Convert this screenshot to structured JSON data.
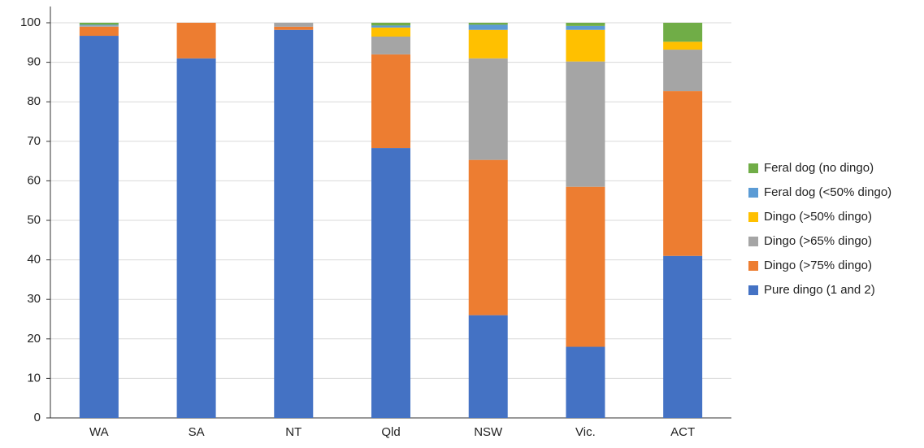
{
  "chart_data": {
    "type": "stacked_bar",
    "categories": [
      "WA",
      "SA",
      "NT",
      "Qld",
      "NSW",
      "Vic.",
      "ACT"
    ],
    "series": [
      {
        "name": "Pure dingo (1 and 2)",
        "color": "#4472c4",
        "values": [
          96.7,
          91,
          98.2,
          68.3,
          26,
          18,
          41
        ]
      },
      {
        "name": "Dingo (>75% dingo)",
        "color": "#ed7d31",
        "values": [
          2.3,
          9,
          0.8,
          23.7,
          39.3,
          40.5,
          41.7
        ]
      },
      {
        "name": "Dingo (>65% dingo)",
        "color": "#a5a5a5",
        "values": [
          0.3,
          0,
          1,
          4.5,
          25.7,
          31.7,
          10.5
        ]
      },
      {
        "name": "Dingo (>50% dingo)",
        "color": "#ffc000",
        "values": [
          0,
          0,
          0,
          2.3,
          7.2,
          8,
          2
        ]
      },
      {
        "name": "Feral dog (<50% dingo)",
        "color": "#5b9bd5",
        "values": [
          0.2,
          0,
          0,
          0.5,
          1.3,
          1,
          0
        ]
      },
      {
        "name": "Feral dog (no dingo)",
        "color": "#70ad47",
        "values": [
          0.5,
          0,
          0,
          0.7,
          0.5,
          0.8,
          4.8
        ]
      }
    ],
    "ylim": [
      0,
      100
    ],
    "yticks": [
      0,
      10,
      20,
      30,
      40,
      50,
      60,
      70,
      80,
      90,
      100
    ],
    "grid": true,
    "legend": "right"
  }
}
